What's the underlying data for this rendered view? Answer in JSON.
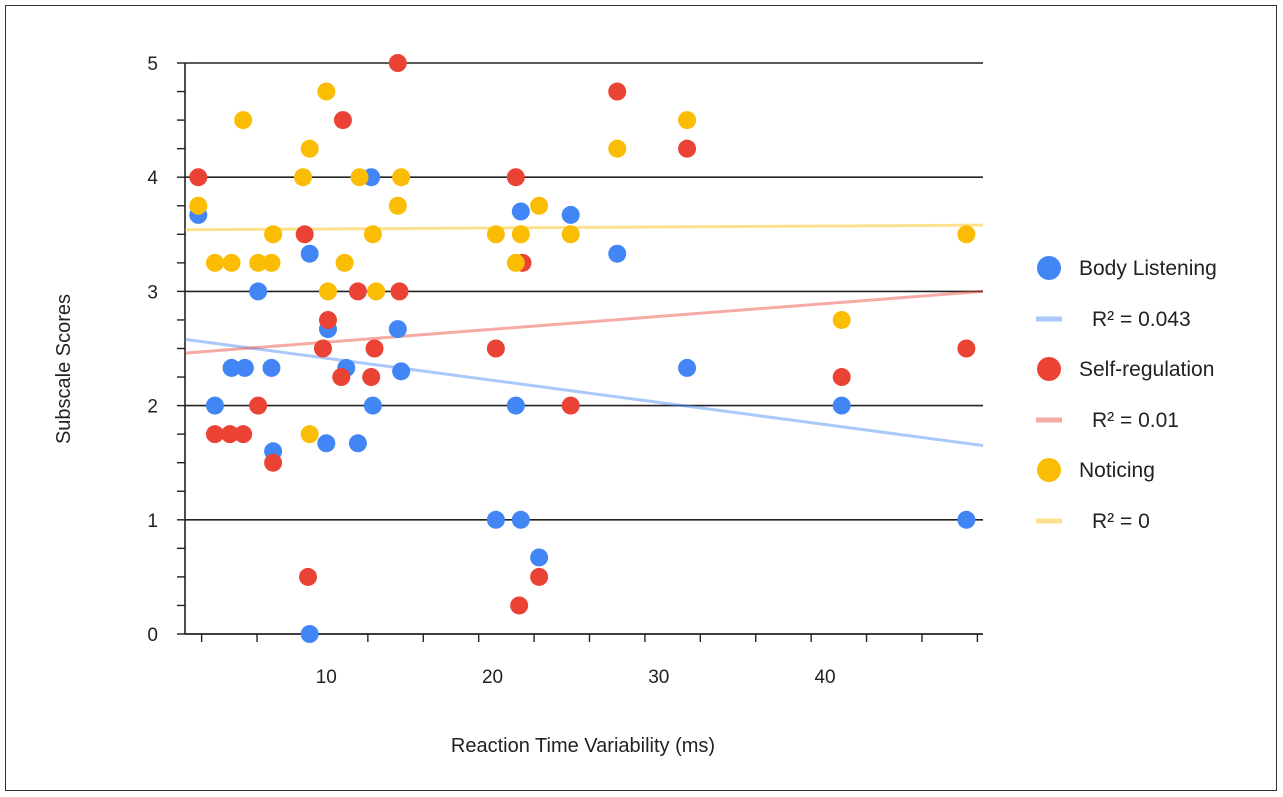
{
  "chart_data": {
    "type": "scatter",
    "xlabel": "Reaction Time Variability  (ms)",
    "ylabel": "Subscale Scores",
    "xlim": [
      1.5,
      49.5
    ],
    "ylim": [
      0,
      5
    ],
    "x_ticks": [
      10,
      20,
      30,
      40
    ],
    "y_ticks": [
      0,
      1,
      2,
      3,
      4,
      5
    ],
    "grid": true,
    "legend_position": "right",
    "series": [
      {
        "name": "Body Listening",
        "color": "#4285F4",
        "trend_label": "R² = 0.043",
        "trend": [
          [
            1.5,
            2.58
          ],
          [
            49.5,
            1.65
          ]
        ],
        "points": [
          [
            2.3,
            3.67
          ],
          [
            3.3,
            2.0
          ],
          [
            4.3,
            2.33
          ],
          [
            5.1,
            2.33
          ],
          [
            5.9,
            3.0
          ],
          [
            6.7,
            2.33
          ],
          [
            6.8,
            1.6
          ],
          [
            9.0,
            3.33
          ],
          [
            9.0,
            0.0
          ],
          [
            10.1,
            2.67
          ],
          [
            10.0,
            1.67
          ],
          [
            11.2,
            2.33
          ],
          [
            11.9,
            1.67
          ],
          [
            12.7,
            4.0
          ],
          [
            12.8,
            2.0
          ],
          [
            14.3,
            2.67
          ],
          [
            14.5,
            2.3
          ],
          [
            20.2,
            1.0
          ],
          [
            21.4,
            2.0
          ],
          [
            21.7,
            3.7
          ],
          [
            21.7,
            1.0
          ],
          [
            22.8,
            0.67
          ],
          [
            24.7,
            3.67
          ],
          [
            27.5,
            3.33
          ],
          [
            31.7,
            2.33
          ],
          [
            41.0,
            2.0
          ],
          [
            48.5,
            1.0
          ]
        ]
      },
      {
        "name": "Self-regulation",
        "color": "#EA4335",
        "trend_label": "R² = 0.01",
        "trend": [
          [
            1.5,
            2.46
          ],
          [
            49.5,
            3.0
          ]
        ],
        "points": [
          [
            2.3,
            4.0
          ],
          [
            3.3,
            1.75
          ],
          [
            4.2,
            1.75
          ],
          [
            5.0,
            1.75
          ],
          [
            5.9,
            2.0
          ],
          [
            6.8,
            1.5
          ],
          [
            8.7,
            3.5
          ],
          [
            8.9,
            0.5
          ],
          [
            9.8,
            2.5
          ],
          [
            10.1,
            2.75
          ],
          [
            11.0,
            4.5
          ],
          [
            10.9,
            2.25
          ],
          [
            11.9,
            3.0
          ],
          [
            12.7,
            2.25
          ],
          [
            12.9,
            2.5
          ],
          [
            14.3,
            5.0
          ],
          [
            14.4,
            3.0
          ],
          [
            20.2,
            2.5
          ],
          [
            21.4,
            4.0
          ],
          [
            21.8,
            3.25
          ],
          [
            21.6,
            0.25
          ],
          [
            22.8,
            0.5
          ],
          [
            24.7,
            2.0
          ],
          [
            27.5,
            4.75
          ],
          [
            31.7,
            4.25
          ],
          [
            41.0,
            2.25
          ],
          [
            48.5,
            2.5
          ]
        ]
      },
      {
        "name": "Noticing",
        "color": "#FBBC04",
        "trend_label": "R² = 0",
        "trend": [
          [
            1.5,
            3.54
          ],
          [
            49.5,
            3.58
          ]
        ],
        "points": [
          [
            2.3,
            3.75
          ],
          [
            3.3,
            3.25
          ],
          [
            4.3,
            3.25
          ],
          [
            5.0,
            4.5
          ],
          [
            5.9,
            3.25
          ],
          [
            6.7,
            3.25
          ],
          [
            6.8,
            3.5
          ],
          [
            8.6,
            4.0
          ],
          [
            9.0,
            4.25
          ],
          [
            9.0,
            1.75
          ],
          [
            10.0,
            4.75
          ],
          [
            10.1,
            3.0
          ],
          [
            11.1,
            3.25
          ],
          [
            12.0,
            4.0
          ],
          [
            12.8,
            3.5
          ],
          [
            13.0,
            3.0
          ],
          [
            14.3,
            3.75
          ],
          [
            14.5,
            4.0
          ],
          [
            20.2,
            3.5
          ],
          [
            21.4,
            3.25
          ],
          [
            21.7,
            3.5
          ],
          [
            22.8,
            3.75
          ],
          [
            24.7,
            3.5
          ],
          [
            27.5,
            4.25
          ],
          [
            31.7,
            4.5
          ],
          [
            41.0,
            2.75
          ],
          [
            48.5,
            3.5
          ]
        ]
      }
    ]
  }
}
